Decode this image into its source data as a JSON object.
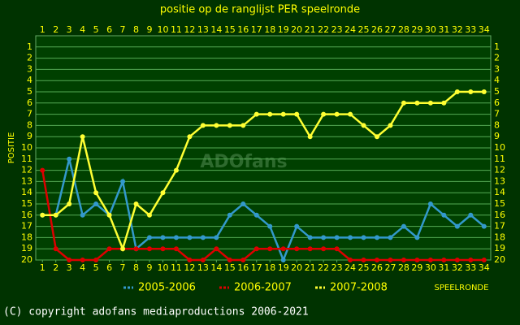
{
  "chart_data": {
    "type": "line",
    "title": "positie op de ranglijst PER speelronde",
    "y_label": "POSITIE",
    "x_label": "SPEELRONDE",
    "watermark": "ADOfans",
    "footer": "(C) copyright adofans mediaproductions 2006-2021",
    "x": [
      1,
      2,
      3,
      4,
      5,
      6,
      7,
      8,
      9,
      10,
      11,
      12,
      13,
      14,
      15,
      16,
      17,
      18,
      19,
      20,
      21,
      22,
      23,
      24,
      25,
      26,
      27,
      28,
      29,
      30,
      31,
      32,
      33,
      34
    ],
    "xlim": [
      0.5,
      34.5
    ],
    "xticks": [
      1,
      2,
      3,
      4,
      5,
      6,
      7,
      8,
      9,
      10,
      11,
      12,
      13,
      14,
      15,
      16,
      17,
      18,
      19,
      20,
      21,
      22,
      23,
      24,
      25,
      26,
      27,
      28,
      29,
      30,
      31,
      32,
      33,
      34
    ],
    "ylim": [
      20,
      0
    ],
    "yticks": [
      1,
      2,
      3,
      4,
      5,
      6,
      7,
      8,
      9,
      10,
      11,
      12,
      13,
      14,
      15,
      16,
      17,
      18,
      19,
      20
    ],
    "grid": true,
    "series": [
      {
        "name": "2005-2006",
        "color": "#3399cc",
        "values": [
          16,
          16,
          11,
          16,
          15,
          16,
          13,
          19,
          18,
          18,
          18,
          18,
          18,
          18,
          16,
          15,
          16,
          17,
          20,
          17,
          18,
          18,
          18,
          18,
          18,
          18,
          18,
          17,
          18,
          15,
          16,
          17,
          16,
          17
        ]
      },
      {
        "name": "2006-2007",
        "color": "#dd0000",
        "values": [
          12,
          19,
          20,
          20,
          20,
          19,
          19,
          19,
          19,
          19,
          19,
          20,
          20,
          19,
          20,
          20,
          19,
          19,
          19,
          19,
          19,
          19,
          19,
          20,
          20,
          20,
          20,
          20,
          20,
          20,
          20,
          20,
          20,
          20
        ]
      },
      {
        "name": "2007-2008",
        "color": "#ffff33",
        "values": [
          16,
          16,
          15,
          9,
          14,
          16,
          19,
          15,
          16,
          14,
          12,
          9,
          8,
          8,
          8,
          8,
          7,
          7,
          7,
          7,
          9,
          7,
          7,
          7,
          8,
          9,
          8,
          6,
          6,
          6,
          6,
          5,
          5,
          5
        ]
      }
    ]
  }
}
